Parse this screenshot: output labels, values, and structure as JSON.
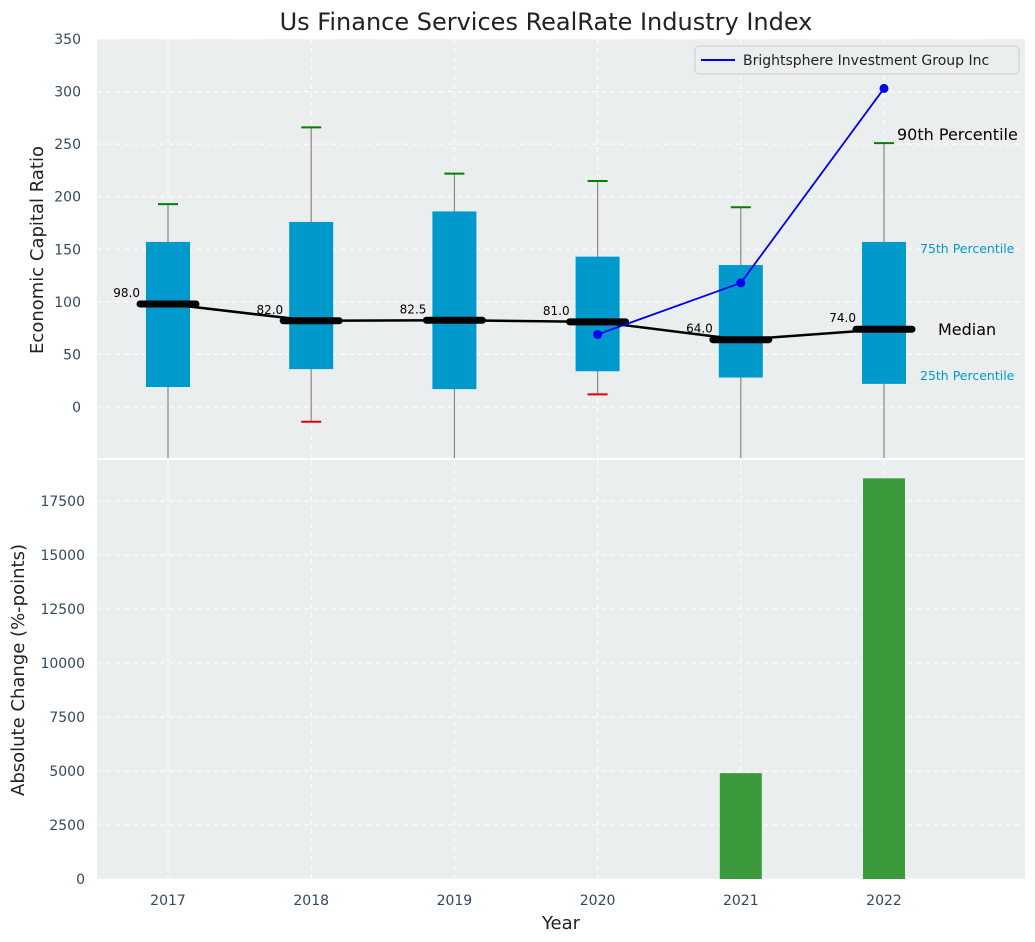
{
  "chart_data": [
    {
      "type": "box",
      "title": "Us Finance Services RealRate Industry Index",
      "xlabel": "",
      "ylabel": "Economic Capital Ratio",
      "ylim": [
        -48,
        350
      ],
      "yticks": [
        0,
        50,
        100,
        150,
        200,
        250,
        300,
        350
      ],
      "grid": true,
      "categories": [
        "2017",
        "2018",
        "2019",
        "2020",
        "2021",
        "2022"
      ],
      "boxes": [
        {
          "year": "2017",
          "q1": 19,
          "median": 98.0,
          "median_label": "98.0",
          "q3": 157,
          "p90": 193,
          "p10": null
        },
        {
          "year": "2018",
          "q1": 36,
          "median": 82.0,
          "median_label": "82.0",
          "q3": 176,
          "p90": 266,
          "p10": -14
        },
        {
          "year": "2019",
          "q1": 17,
          "median": 82.5,
          "median_label": "82.5",
          "q3": 186,
          "p90": 222,
          "p10": null
        },
        {
          "year": "2020",
          "q1": 34,
          "median": 81.0,
          "median_label": "81.0",
          "q3": 143,
          "p90": 215,
          "p10": 12
        },
        {
          "year": "2021",
          "q1": 28,
          "median": 64.0,
          "median_label": "64.0",
          "q3": 135,
          "p90": 190,
          "p10": null
        },
        {
          "year": "2022",
          "q1": 22,
          "median": 74.0,
          "median_label": "74.0",
          "q3": 157,
          "p90": 251,
          "p10": null
        }
      ],
      "series": [
        {
          "name": "Brightsphere Investment Group Inc",
          "color": "#0000ee",
          "x": [
            "2020",
            "2021",
            "2022"
          ],
          "values": [
            69,
            118,
            303
          ]
        }
      ],
      "annotations": {
        "p90": "90th Percentile",
        "q3": "75th Percentile",
        "median": "Median",
        "q1": "25th Percentile"
      },
      "legend_position": "top-right",
      "colors": {
        "box": "#0099cc",
        "median": "#000000",
        "p90_cap": "#008000",
        "p10_cap": "#dd0000",
        "whisker": "#888888",
        "background": "#eaeeef"
      }
    },
    {
      "type": "bar",
      "title": "",
      "xlabel": "Year",
      "ylabel": "Absolute Change (%-points)",
      "ylim": [
        0,
        19000
      ],
      "yticks": [
        0,
        2500,
        5000,
        7500,
        10000,
        12500,
        15000,
        17500
      ],
      "grid": true,
      "categories": [
        "2017",
        "2018",
        "2019",
        "2020",
        "2021",
        "2022"
      ],
      "values": [
        0,
        0,
        0,
        0,
        4900,
        18550
      ],
      "colors": {
        "bar": "#3a9a3c",
        "background": "#eaeeef"
      }
    }
  ]
}
